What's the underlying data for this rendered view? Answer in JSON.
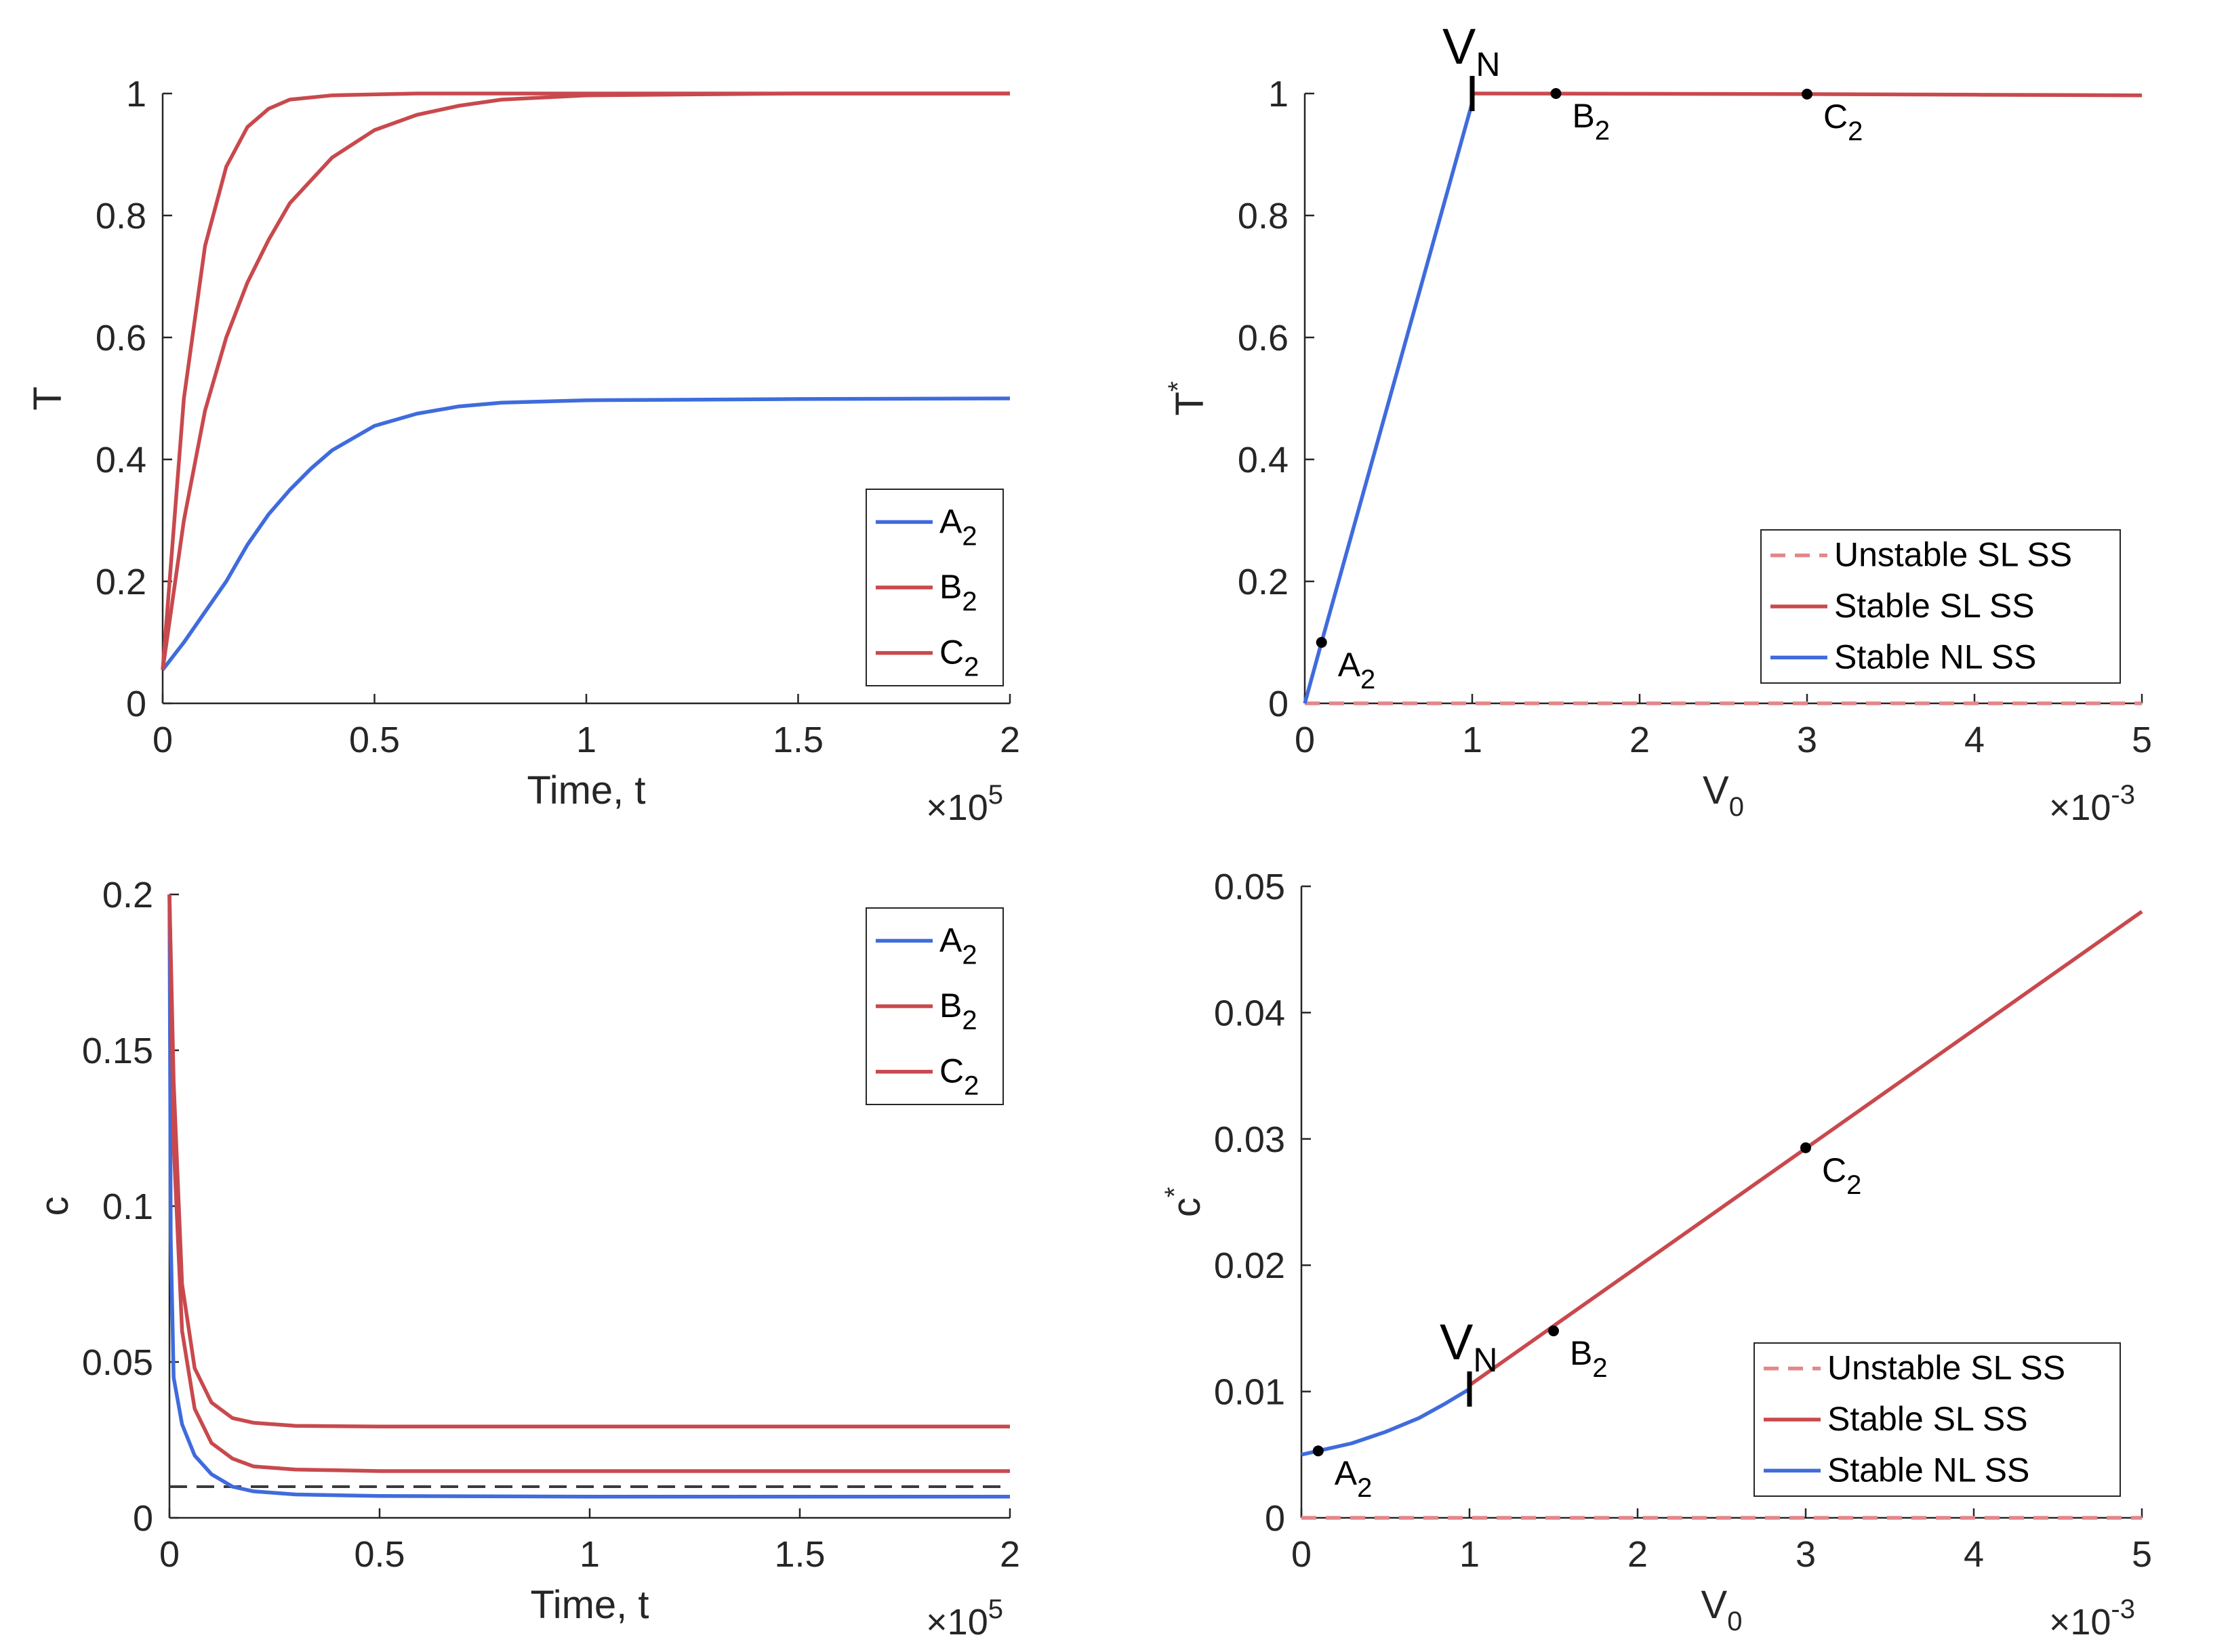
{
  "colors": {
    "blue": "#3f6bdc",
    "red": "#c8494d",
    "red_dashed": "#e4868a",
    "gray_dashed": "#3a3a3a",
    "axis": "#262626"
  },
  "chart_data": [
    {
      "id": "top-left",
      "type": "line",
      "xlabel": "Time, t",
      "ylabel": "T",
      "x_exponent": "×10",
      "x_exponent_power": "5",
      "xlim": [
        0,
        2
      ],
      "ylim": [
        0,
        1
      ],
      "xticks": [
        0,
        0.5,
        1,
        1.5,
        2
      ],
      "xtick_labels": [
        "0",
        "0.5",
        "1",
        "1.5",
        "2"
      ],
      "yticks": [
        0,
        0.2,
        0.4,
        0.6,
        0.8,
        1
      ],
      "ytick_labels": [
        "0",
        "0.2",
        "0.4",
        "0.6",
        "0.8",
        "1"
      ],
      "legend_position": "lower-right",
      "series": [
        {
          "name": "A",
          "name_sub": "2",
          "color": "blue",
          "style": "solid",
          "points": [
            [
              0,
              0.055
            ],
            [
              0.05,
              0.1
            ],
            [
              0.1,
              0.15
            ],
            [
              0.15,
              0.2
            ],
            [
              0.2,
              0.26
            ],
            [
              0.25,
              0.31
            ],
            [
              0.3,
              0.35
            ],
            [
              0.35,
              0.385
            ],
            [
              0.4,
              0.415
            ],
            [
              0.5,
              0.455
            ],
            [
              0.6,
              0.475
            ],
            [
              0.7,
              0.487
            ],
            [
              0.8,
              0.493
            ],
            [
              1.0,
              0.497
            ],
            [
              1.5,
              0.499
            ],
            [
              2,
              0.5
            ]
          ]
        },
        {
          "name": "B",
          "name_sub": "2",
          "color": "red",
          "style": "solid",
          "points": [
            [
              0,
              0.055
            ],
            [
              0.05,
              0.3
            ],
            [
              0.1,
              0.48
            ],
            [
              0.15,
              0.6
            ],
            [
              0.2,
              0.69
            ],
            [
              0.25,
              0.76
            ],
            [
              0.3,
              0.82
            ],
            [
              0.4,
              0.895
            ],
            [
              0.5,
              0.94
            ],
            [
              0.6,
              0.965
            ],
            [
              0.7,
              0.98
            ],
            [
              0.8,
              0.99
            ],
            [
              1.0,
              0.997
            ],
            [
              1.5,
              1.0
            ],
            [
              2,
              1.0
            ]
          ]
        },
        {
          "name": "C",
          "name_sub": "2",
          "color": "red",
          "style": "solid",
          "points": [
            [
              0,
              0.055
            ],
            [
              0.05,
              0.5
            ],
            [
              0.1,
              0.75
            ],
            [
              0.15,
              0.88
            ],
            [
              0.2,
              0.945
            ],
            [
              0.25,
              0.975
            ],
            [
              0.3,
              0.99
            ],
            [
              0.4,
              0.997
            ],
            [
              0.6,
              1.0
            ],
            [
              2,
              1.0
            ]
          ]
        }
      ]
    },
    {
      "id": "top-right",
      "type": "line",
      "xlabel": "V",
      "xlabel_sub": "0",
      "ylabel": "T",
      "ylabel_sup": "*",
      "x_exponent": "×10",
      "x_exponent_power": "-3",
      "xlim": [
        0,
        5
      ],
      "ylim": [
        0,
        1
      ],
      "xticks": [
        0,
        1,
        2,
        3,
        4,
        5
      ],
      "xtick_labels": [
        "0",
        "1",
        "2",
        "3",
        "4",
        "5"
      ],
      "yticks": [
        0,
        0.2,
        0.4,
        0.6,
        0.8,
        1
      ],
      "ytick_labels": [
        "0",
        "0.2",
        "0.4",
        "0.6",
        "0.8",
        "1"
      ],
      "legend_position": "lower-right",
      "series": [
        {
          "name": "Unstable SL SS",
          "color": "red_dashed",
          "style": "dashed",
          "points": [
            [
              0,
              0
            ],
            [
              5,
              0
            ]
          ]
        },
        {
          "name": "Stable SL SS",
          "color": "red",
          "style": "solid",
          "points": [
            [
              1,
              1.0
            ],
            [
              2,
              0.9995
            ],
            [
              3,
              0.999
            ],
            [
              4,
              0.998
            ],
            [
              5,
              0.997
            ]
          ]
        },
        {
          "name": "Stable NL SS",
          "color": "blue",
          "style": "solid",
          "points": [
            [
              0,
              0
            ],
            [
              0.1,
              0.1
            ],
            [
              1,
              0.985
            ]
          ]
        }
      ],
      "markers": [
        {
          "label": "A",
          "sub": "2",
          "x": 0.1,
          "y": 0.1
        },
        {
          "label": "B",
          "sub": "2",
          "x": 1.5,
          "y": 1.0
        },
        {
          "label": "C",
          "sub": "2",
          "x": 3.0,
          "y": 0.999
        }
      ],
      "vn_marker": {
        "label": "V",
        "sub": "N",
        "x": 1.0,
        "y": 1.0
      }
    },
    {
      "id": "bottom-left",
      "type": "line",
      "xlabel": "Time, t",
      "ylabel": "c",
      "x_exponent": "×10",
      "x_exponent_power": "5",
      "xlim": [
        0,
        2
      ],
      "ylim": [
        0,
        0.2
      ],
      "xticks": [
        0,
        0.5,
        1,
        1.5,
        2
      ],
      "xtick_labels": [
        "0",
        "0.5",
        "1",
        "1.5",
        "2"
      ],
      "yticks": [
        0,
        0.05,
        0.1,
        0.15,
        0.2
      ],
      "ytick_labels": [
        "0",
        "0.05",
        "0.1",
        "0.15",
        "0.2"
      ],
      "legend_position": "top-right",
      "threshold": 0.01,
      "series": [
        {
          "name": "A",
          "name_sub": "2",
          "color": "blue",
          "style": "solid",
          "points": [
            [
              0,
              0.2
            ],
            [
              0.003,
              0.09
            ],
            [
              0.01,
              0.045
            ],
            [
              0.03,
              0.03
            ],
            [
              0.06,
              0.02
            ],
            [
              0.1,
              0.014
            ],
            [
              0.15,
              0.01
            ],
            [
              0.2,
              0.0085
            ],
            [
              0.3,
              0.0075
            ],
            [
              0.5,
              0.007
            ],
            [
              1.0,
              0.0068
            ],
            [
              2,
              0.0068
            ]
          ]
        },
        {
          "name": "B",
          "name_sub": "2",
          "color": "red",
          "style": "solid",
          "points": [
            [
              0,
              0.2
            ],
            [
              0.01,
              0.12
            ],
            [
              0.03,
              0.06
            ],
            [
              0.06,
              0.035
            ],
            [
              0.1,
              0.024
            ],
            [
              0.15,
              0.019
            ],
            [
              0.2,
              0.0165
            ],
            [
              0.3,
              0.0155
            ],
            [
              0.5,
              0.015
            ],
            [
              1.0,
              0.015
            ],
            [
              2,
              0.015
            ]
          ]
        },
        {
          "name": "C",
          "name_sub": "2",
          "color": "red",
          "style": "solid",
          "points": [
            [
              0,
              0.2
            ],
            [
              0.01,
              0.14
            ],
            [
              0.03,
              0.075
            ],
            [
              0.06,
              0.048
            ],
            [
              0.1,
              0.037
            ],
            [
              0.15,
              0.032
            ],
            [
              0.2,
              0.0305
            ],
            [
              0.3,
              0.0295
            ],
            [
              0.5,
              0.0293
            ],
            [
              1.0,
              0.0293
            ],
            [
              2,
              0.0293
            ]
          ]
        }
      ]
    },
    {
      "id": "bottom-right",
      "type": "line",
      "xlabel": "V",
      "xlabel_sub": "0",
      "ylabel": "c",
      "ylabel_sup": "*",
      "x_exponent": "×10",
      "x_exponent_power": "-3",
      "xlim": [
        0,
        5
      ],
      "ylim": [
        0,
        0.05
      ],
      "xticks": [
        0,
        1,
        2,
        3,
        4,
        5
      ],
      "xtick_labels": [
        "0",
        "1",
        "2",
        "3",
        "4",
        "5"
      ],
      "yticks": [
        0,
        0.01,
        0.02,
        0.03,
        0.04,
        0.05
      ],
      "ytick_labels": [
        "0",
        "0.01",
        "0.02",
        "0.03",
        "0.04",
        "0.05"
      ],
      "legend_position": "lower-right",
      "series": [
        {
          "name": "Unstable SL SS",
          "color": "red_dashed",
          "style": "dashed",
          "points": [
            [
              0,
              0
            ],
            [
              5,
              0
            ]
          ]
        },
        {
          "name": "Stable SL SS",
          "color": "red",
          "style": "solid",
          "points": [
            [
              1,
              0.0105
            ],
            [
              5,
              0.048
            ]
          ]
        },
        {
          "name": "Stable NL SS",
          "color": "blue",
          "style": "solid",
          "points": [
            [
              0,
              0.005
            ],
            [
              0.1,
              0.0053
            ],
            [
              0.3,
              0.0059
            ],
            [
              0.5,
              0.0068
            ],
            [
              0.7,
              0.0079
            ],
            [
              0.85,
              0.009
            ],
            [
              1,
              0.0102
            ]
          ]
        }
      ],
      "markers": [
        {
          "label": "A",
          "sub": "2",
          "x": 0.1,
          "y": 0.0053
        },
        {
          "label": "B",
          "sub": "2",
          "x": 1.5,
          "y": 0.0148
        },
        {
          "label": "C",
          "sub": "2",
          "x": 3.0,
          "y": 0.0293
        }
      ],
      "vn_marker": {
        "label": "V",
        "sub": "N",
        "x": 1.0,
        "y": 0.0102
      }
    }
  ]
}
